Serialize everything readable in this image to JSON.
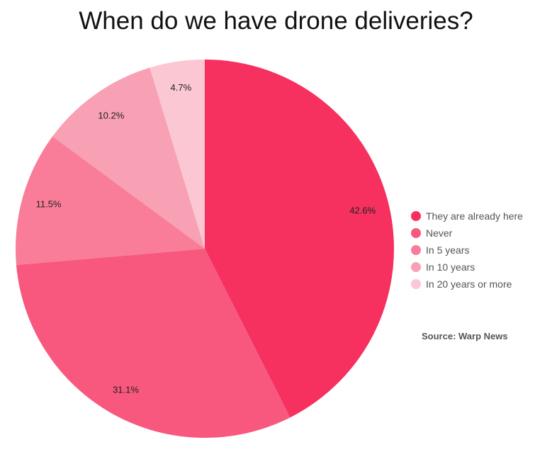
{
  "chart_data": {
    "type": "pie",
    "title": "When do we have drone deliveries?",
    "categories": [
      "They are already here",
      "Never",
      "In 5 years",
      "In 10 years",
      "In 20 years or more"
    ],
    "values": [
      42.6,
      31.1,
      11.5,
      10.2,
      4.7
    ],
    "labels": [
      "42.6%",
      "31.1%",
      "11.5%",
      "10.2%",
      "4.7%"
    ],
    "colors": [
      "#f6305f",
      "#f8587e",
      "#f97d98",
      "#f8a0b4",
      "#fbc7d3"
    ],
    "legend_position": "right",
    "source": "Source: Warp News"
  }
}
